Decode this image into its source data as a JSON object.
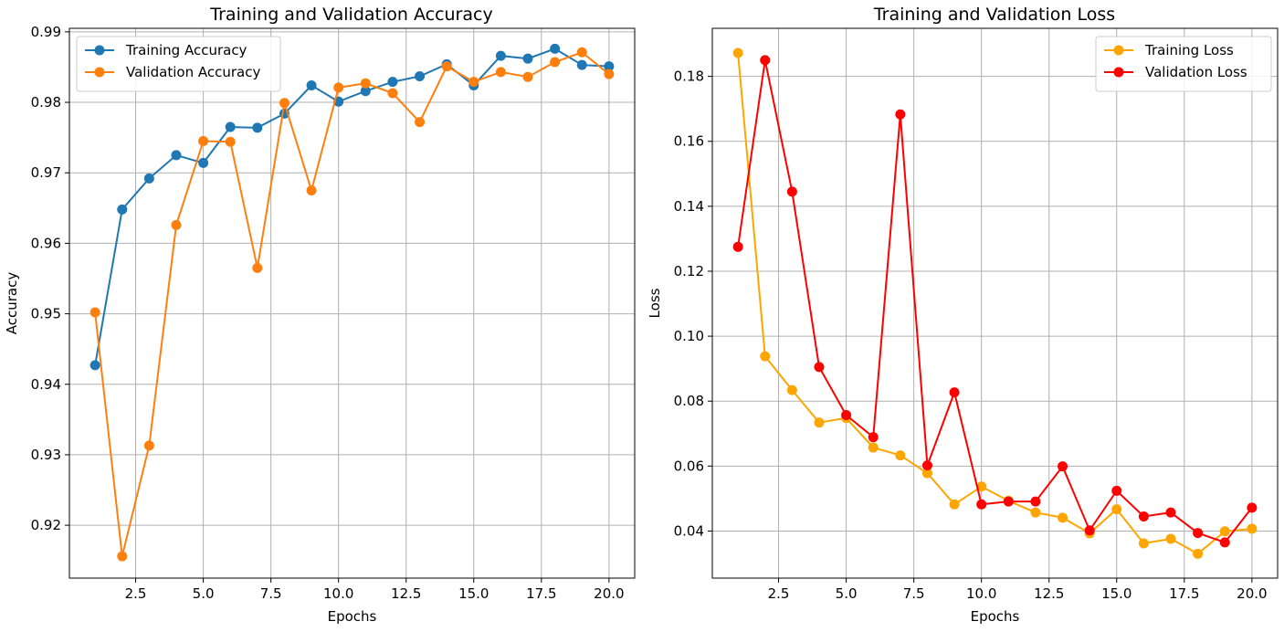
{
  "chart_data": [
    {
      "type": "line",
      "title": "Training and Validation Accuracy",
      "xlabel": "Epochs",
      "ylabel": "Accuracy",
      "xlim": [
        0.05,
        20.95
      ],
      "ylim": [
        0.9125,
        0.9905
      ],
      "xticks": [
        2.5,
        5.0,
        7.5,
        10.0,
        12.5,
        15.0,
        17.5,
        20.0
      ],
      "xtick_labels": [
        "2.5",
        "5.0",
        "7.5",
        "10.0",
        "12.5",
        "15.0",
        "17.5",
        "20.0"
      ],
      "yticks": [
        0.92,
        0.93,
        0.94,
        0.95,
        0.96,
        0.97,
        0.98,
        0.99
      ],
      "ytick_labels": [
        "0.92",
        "0.93",
        "0.94",
        "0.95",
        "0.96",
        "0.97",
        "0.98",
        "0.99"
      ],
      "grid": true,
      "legend": "upper-left",
      "x": [
        1,
        2,
        3,
        4,
        5,
        6,
        7,
        8,
        9,
        10,
        11,
        12,
        13,
        14,
        15,
        16,
        17,
        18,
        19,
        20
      ],
      "series": [
        {
          "name": "Training Accuracy",
          "color": "#1f77b4",
          "values": [
            0.9427,
            0.9648,
            0.9692,
            0.9725,
            0.9714,
            0.9765,
            0.9764,
            0.9784,
            0.9824,
            0.9801,
            0.9816,
            0.9829,
            0.9837,
            0.9854,
            0.9824,
            0.9866,
            0.9862,
            0.9876,
            0.9853,
            0.9851
          ]
        },
        {
          "name": "Validation Accuracy",
          "color": "#ff7f0e",
          "values": [
            0.9502,
            0.9156,
            0.9313,
            0.9626,
            0.9745,
            0.9744,
            0.9565,
            0.9799,
            0.9675,
            0.9821,
            0.9827,
            0.9813,
            0.9772,
            0.9851,
            0.9829,
            0.9843,
            0.9836,
            0.9857,
            0.9871,
            0.984
          ]
        }
      ]
    },
    {
      "type": "line",
      "title": "Training and Validation Loss",
      "xlabel": "Epochs",
      "ylabel": "Loss",
      "xlim": [
        0.05,
        20.95
      ],
      "ylim": [
        0.0255,
        0.1948
      ],
      "xticks": [
        2.5,
        5.0,
        7.5,
        10.0,
        12.5,
        15.0,
        17.5,
        20.0
      ],
      "xtick_labels": [
        "2.5",
        "5.0",
        "7.5",
        "10.0",
        "12.5",
        "15.0",
        "17.5",
        "20.0"
      ],
      "yticks": [
        0.04,
        0.06,
        0.08,
        0.1,
        0.12,
        0.14,
        0.16,
        0.18
      ],
      "ytick_labels": [
        "0.04",
        "0.06",
        "0.08",
        "0.10",
        "0.12",
        "0.14",
        "0.16",
        "0.18"
      ],
      "grid": true,
      "legend": "upper-right",
      "x": [
        1,
        2,
        3,
        4,
        5,
        6,
        7,
        8,
        9,
        10,
        11,
        12,
        13,
        14,
        15,
        16,
        17,
        18,
        19,
        20
      ],
      "series": [
        {
          "name": "Training Loss",
          "color": "#ffa500",
          "values": [
            0.1872,
            0.0938,
            0.0834,
            0.0734,
            0.0748,
            0.0657,
            0.0633,
            0.0578,
            0.0482,
            0.0537,
            0.0493,
            0.0457,
            0.0441,
            0.0393,
            0.0467,
            0.0362,
            0.0376,
            0.033,
            0.0399,
            0.0407
          ]
        },
        {
          "name": "Validation Loss",
          "color": "#ff0000",
          "values": [
            0.1275,
            0.185,
            0.1445,
            0.0905,
            0.0757,
            0.0689,
            0.1683,
            0.0602,
            0.0827,
            0.0482,
            0.0491,
            0.0491,
            0.0599,
            0.0402,
            0.0524,
            0.0445,
            0.0457,
            0.0394,
            0.0365,
            0.0472
          ]
        }
      ]
    }
  ]
}
